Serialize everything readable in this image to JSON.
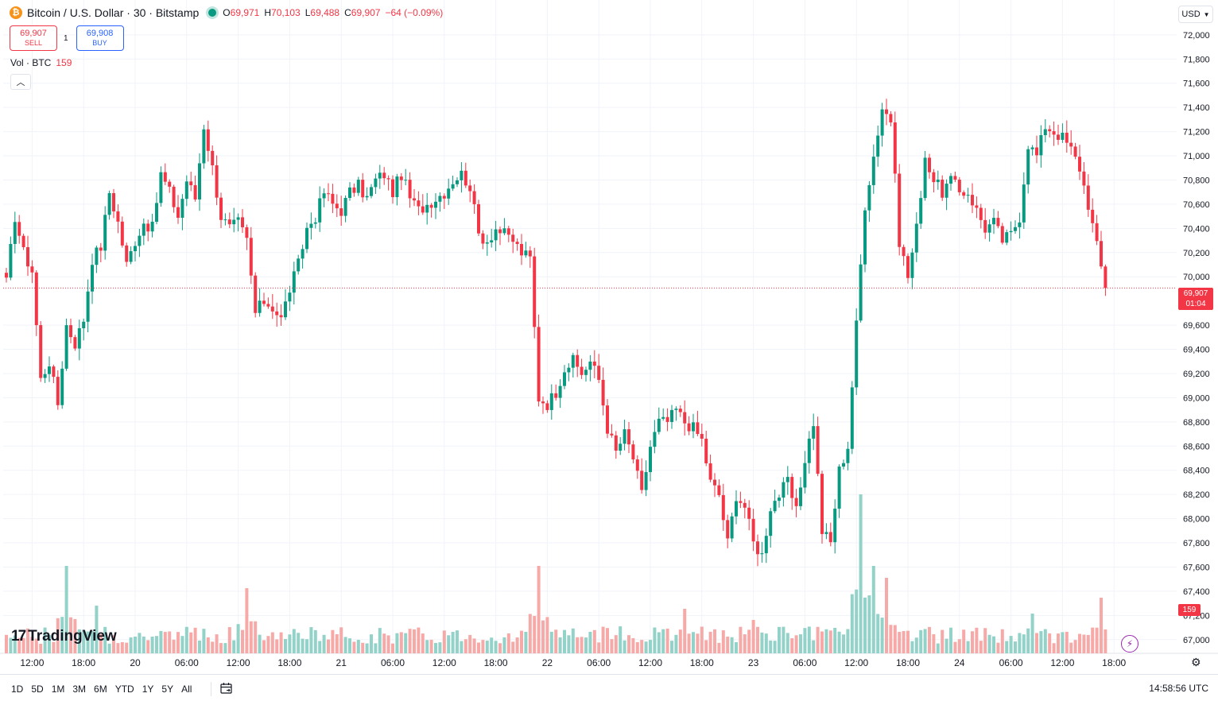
{
  "header": {
    "coin_symbol": "₿",
    "title": "Bitcoin / U.S. Dollar · 30 · Bitstamp",
    "ohlc": {
      "o_label": "O",
      "o": "69,971",
      "h_label": "H",
      "h": "70,103",
      "l_label": "L",
      "l": "69,488",
      "c_label": "C",
      "c": "69,907",
      "change": "−64 (−0.09%)"
    }
  },
  "trade": {
    "sell_price": "69,907",
    "sell_label": "SELL",
    "spread": "1",
    "buy_price": "69,908",
    "buy_label": "BUY"
  },
  "volume_legend": {
    "label": "Vol · BTC",
    "value": "159"
  },
  "collapse_icon": "chevron-up-icon",
  "currency": {
    "label": "USD",
    "icon": "chevron-down-icon"
  },
  "last_price_tag": {
    "price": "69,907",
    "countdown": "01:04"
  },
  "volume_tag": "159",
  "logo": {
    "mark": "17",
    "text": "TradingView"
  },
  "bottom": {
    "ranges": [
      "1D",
      "5D",
      "1M",
      "3M",
      "6M",
      "YTD",
      "1Y",
      "5Y",
      "All"
    ],
    "clock": "14:58:56 UTC"
  },
  "colors": {
    "up": "#089981",
    "down": "#f23645",
    "up_volume": "#92d2c8",
    "down_volume": "#f7a9a7",
    "grid": "#f0f3fa",
    "text": "#131722"
  },
  "chart_data": {
    "type": "candlestick",
    "title": "Bitcoin / U.S. Dollar · 30 · Bitstamp",
    "interval": "30",
    "ylim": [
      66900,
      72150
    ],
    "y_ticks": [
      72000,
      71800,
      71600,
      71400,
      71200,
      71000,
      70800,
      70600,
      70400,
      70200,
      70000,
      69600,
      69400,
      69200,
      69000,
      68800,
      68600,
      68400,
      68200,
      68000,
      67800,
      67600,
      67400,
      67200,
      67000
    ],
    "y_tick_labels": [
      "72,000",
      "71,800",
      "71,600",
      "71,400",
      "71,200",
      "71,000",
      "70,800",
      "70,600",
      "70,400",
      "70,200",
      "70,000",
      "69,600",
      "69,400",
      "69,200",
      "69,000",
      "68,800",
      "68,600",
      "68,400",
      "68,200",
      "68,000",
      "67,800",
      "67,600",
      "67,400",
      "67,200",
      "67,000"
    ],
    "x_tick_labels": [
      "12:00",
      "18:00",
      "20",
      "06:00",
      "12:00",
      "18:00",
      "21",
      "06:00",
      "12:00",
      "18:00",
      "22",
      "06:00",
      "12:00",
      "18:00",
      "23",
      "06:00",
      "12:00",
      "18:00",
      "24",
      "06:00",
      "12:00",
      "18:00"
    ],
    "x_tick_index": [
      6,
      18,
      30,
      42,
      54,
      66,
      78,
      90,
      102,
      114,
      126,
      138,
      150,
      162,
      174,
      186,
      198,
      210,
      222,
      234,
      246,
      258
    ],
    "last_price": 69907,
    "grid": true,
    "anchors": [
      [
        0,
        69950
      ],
      [
        2,
        70500
      ],
      [
        4,
        70200
      ],
      [
        6,
        70050
      ],
      [
        8,
        69150
      ],
      [
        10,
        69300
      ],
      [
        12,
        68950
      ],
      [
        14,
        69600
      ],
      [
        16,
        69450
      ],
      [
        18,
        69650
      ],
      [
        20,
        70150
      ],
      [
        22,
        70250
      ],
      [
        24,
        70700
      ],
      [
        26,
        70450
      ],
      [
        28,
        70100
      ],
      [
        30,
        70300
      ],
      [
        32,
        70450
      ],
      [
        34,
        70400
      ],
      [
        36,
        70850
      ],
      [
        38,
        70700
      ],
      [
        40,
        70500
      ],
      [
        42,
        70800
      ],
      [
        44,
        70650
      ],
      [
        46,
        71250
      ],
      [
        48,
        70900
      ],
      [
        50,
        70500
      ],
      [
        52,
        70400
      ],
      [
        54,
        70450
      ],
      [
        56,
        70300
      ],
      [
        58,
        69700
      ],
      [
        60,
        69800
      ],
      [
        62,
        69750
      ],
      [
        64,
        69650
      ],
      [
        66,
        69900
      ],
      [
        68,
        70100
      ],
      [
        70,
        70400
      ],
      [
        72,
        70500
      ],
      [
        74,
        70700
      ],
      [
        76,
        70600
      ],
      [
        78,
        70550
      ],
      [
        80,
        70700
      ],
      [
        82,
        70750
      ],
      [
        84,
        70650
      ],
      [
        86,
        70800
      ],
      [
        88,
        70850
      ],
      [
        90,
        70700
      ],
      [
        92,
        70850
      ],
      [
        94,
        70650
      ],
      [
        96,
        70550
      ],
      [
        98,
        70600
      ],
      [
        100,
        70650
      ],
      [
        102,
        70700
      ],
      [
        104,
        70800
      ],
      [
        106,
        70850
      ],
      [
        108,
        70750
      ],
      [
        110,
        70350
      ],
      [
        112,
        70300
      ],
      [
        114,
        70400
      ],
      [
        116,
        70350
      ],
      [
        118,
        70300
      ],
      [
        120,
        70200
      ],
      [
        122,
        70150
      ],
      [
        124,
        69000
      ],
      [
        126,
        68950
      ],
      [
        128,
        69050
      ],
      [
        130,
        69250
      ],
      [
        132,
        69300
      ],
      [
        134,
        69200
      ],
      [
        136,
        69300
      ],
      [
        138,
        69150
      ],
      [
        140,
        68750
      ],
      [
        142,
        68550
      ],
      [
        144,
        68700
      ],
      [
        146,
        68500
      ],
      [
        148,
        68200
      ],
      [
        150,
        68600
      ],
      [
        152,
        68800
      ],
      [
        154,
        68800
      ],
      [
        156,
        68900
      ],
      [
        158,
        68800
      ],
      [
        160,
        68750
      ],
      [
        162,
        68650
      ],
      [
        164,
        68300
      ],
      [
        166,
        68200
      ],
      [
        168,
        67800
      ],
      [
        170,
        68200
      ],
      [
        172,
        68100
      ],
      [
        174,
        67800
      ],
      [
        176,
        67700
      ],
      [
        178,
        68100
      ],
      [
        180,
        68200
      ],
      [
        182,
        68300
      ],
      [
        184,
        68050
      ],
      [
        186,
        68500
      ],
      [
        188,
        68800
      ],
      [
        190,
        67900
      ],
      [
        192,
        67800
      ],
      [
        194,
        68400
      ],
      [
        196,
        68600
      ],
      [
        198,
        69600
      ],
      [
        200,
        70600
      ],
      [
        202,
        71000
      ],
      [
        204,
        71400
      ],
      [
        206,
        71300
      ],
      [
        208,
        70300
      ],
      [
        210,
        70000
      ],
      [
        212,
        70400
      ],
      [
        214,
        71000
      ],
      [
        216,
        70800
      ],
      [
        218,
        70700
      ],
      [
        220,
        70800
      ],
      [
        222,
        70700
      ],
      [
        224,
        70700
      ],
      [
        226,
        70550
      ],
      [
        228,
        70400
      ],
      [
        230,
        70450
      ],
      [
        232,
        70300
      ],
      [
        234,
        70350
      ],
      [
        236,
        70500
      ],
      [
        238,
        71100
      ],
      [
        240,
        71000
      ],
      [
        242,
        71250
      ],
      [
        244,
        71200
      ],
      [
        246,
        71150
      ],
      [
        248,
        71050
      ],
      [
        250,
        70900
      ],
      [
        252,
        70600
      ],
      [
        254,
        70250
      ],
      [
        256,
        69907
      ]
    ],
    "volume_peaks": [
      [
        14,
        110
      ],
      [
        21,
        60
      ],
      [
        56,
        82
      ],
      [
        124,
        110
      ],
      [
        158,
        56
      ],
      [
        174,
        42
      ],
      [
        199,
        200
      ],
      [
        202,
        110
      ],
      [
        205,
        95
      ],
      [
        239,
        50
      ],
      [
        255,
        70
      ]
    ]
  }
}
